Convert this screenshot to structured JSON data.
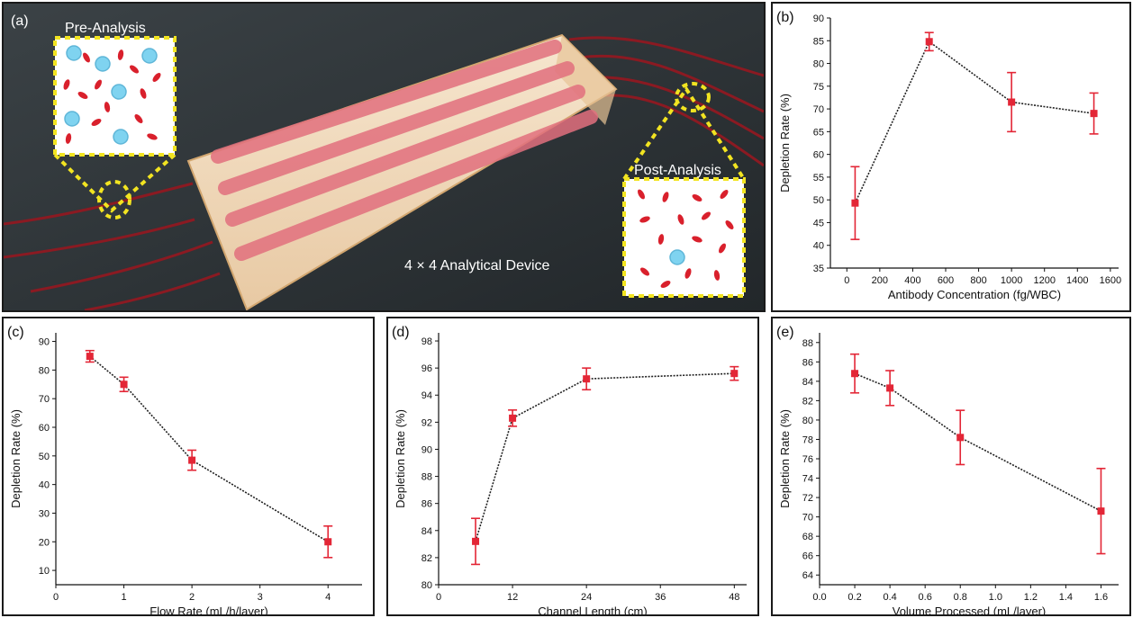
{
  "figure": {
    "photo": {
      "panel_label": "(a)",
      "pre_label": "Pre-Analysis",
      "post_label": "Post-Analysis",
      "device_label": "4 × 4 Analytical Device"
    }
  },
  "colors": {
    "marker": "#e32636",
    "line": "#222222",
    "callout": "#f2e421",
    "rbc": "#d9202c",
    "wbc": "#7fd3f0",
    "device_body": "#f0d7b8",
    "channel": "#e2707e"
  },
  "chart_data": [
    {
      "id": "b",
      "panel_label": "(b)",
      "type": "line",
      "xlabel": "Antibody Concentration (fg/WBC)",
      "ylabel": "Depletion Rate (%)",
      "xlim": [
        -100,
        1650
      ],
      "ylim": [
        35,
        90
      ],
      "xticks": [
        0,
        200,
        400,
        600,
        800,
        1000,
        1200,
        1400,
        1600
      ],
      "xtick_labels": [
        "0",
        "200",
        "400",
        "600",
        "800",
        "1000",
        "1200",
        "1400",
        "1600"
      ],
      "yticks": [
        35,
        40,
        45,
        50,
        55,
        60,
        65,
        70,
        75,
        80,
        85,
        90
      ],
      "ytick_labels": [
        "35",
        "40",
        "45",
        "50",
        "55",
        "60",
        "65",
        "70",
        "75",
        "80",
        "85",
        "90"
      ],
      "x": [
        50,
        500,
        1000,
        1500
      ],
      "y": [
        49.3,
        84.8,
        71.5,
        69
      ],
      "err": [
        8,
        2,
        6.5,
        4.5
      ]
    },
    {
      "id": "c",
      "panel_label": "(c)",
      "type": "line",
      "xlabel": "Flow Rate (mL/h/layer)",
      "ylabel": "Depletion Rate (%)",
      "xlim": [
        0,
        4.5
      ],
      "ylim": [
        5,
        93
      ],
      "xticks": [
        0,
        1,
        2,
        3,
        4
      ],
      "xtick_labels": [
        "0",
        "1",
        "2",
        "3",
        "4"
      ],
      "yticks": [
        10,
        20,
        30,
        40,
        50,
        60,
        70,
        80,
        90
      ],
      "ytick_labels": [
        "10",
        "20",
        "30",
        "40",
        "50",
        "60",
        "70",
        "80",
        "90"
      ],
      "x": [
        0.5,
        1,
        2,
        4
      ],
      "y": [
        84.8,
        75,
        48.5,
        20
      ],
      "err": [
        2,
        2.5,
        3.5,
        5.5
      ]
    },
    {
      "id": "d",
      "panel_label": "(d)",
      "type": "line",
      "xlabel": "Channel Length (cm)",
      "ylabel": "Depletion Rate (%)",
      "xlim": [
        0,
        50
      ],
      "ylim": [
        80,
        98.6
      ],
      "xticks": [
        0,
        12,
        24,
        36,
        48
      ],
      "xtick_labels": [
        "0",
        "12",
        "24",
        "36",
        "48"
      ],
      "yticks": [
        80,
        82,
        84,
        86,
        88,
        90,
        92,
        94,
        96,
        98
      ],
      "ytick_labels": [
        "80",
        "82",
        "84",
        "86",
        "88",
        "90",
        "92",
        "94",
        "96",
        "98"
      ],
      "x": [
        6,
        12,
        24,
        48
      ],
      "y": [
        83.2,
        92.3,
        95.2,
        95.6
      ],
      "err": [
        1.7,
        0.6,
        0.8,
        0.5
      ]
    },
    {
      "id": "e",
      "panel_label": "(e)",
      "type": "line",
      "xlabel": "Volume Processed (mL/layer)",
      "ylabel": "Depletion Rate (%)",
      "xlim": [
        0,
        1.7
      ],
      "ylim": [
        63,
        89
      ],
      "xticks": [
        0,
        0.2,
        0.4,
        0.6,
        0.8,
        1.0,
        1.2,
        1.4,
        1.6
      ],
      "xtick_labels": [
        "0.0",
        "0.2",
        "0.4",
        "0.6",
        "0.8",
        "1.0",
        "1.2",
        "1.4",
        "1.6"
      ],
      "yticks": [
        64,
        66,
        68,
        70,
        72,
        74,
        76,
        78,
        80,
        82,
        84,
        86,
        88
      ],
      "ytick_labels": [
        "64",
        "66",
        "68",
        "70",
        "72",
        "74",
        "76",
        "78",
        "80",
        "82",
        "84",
        "86",
        "88"
      ],
      "x": [
        0.2,
        0.4,
        0.8,
        1.6
      ],
      "y": [
        84.8,
        83.3,
        78.2,
        70.6
      ],
      "err": [
        2,
        1.8,
        2.8,
        4.4
      ]
    }
  ]
}
